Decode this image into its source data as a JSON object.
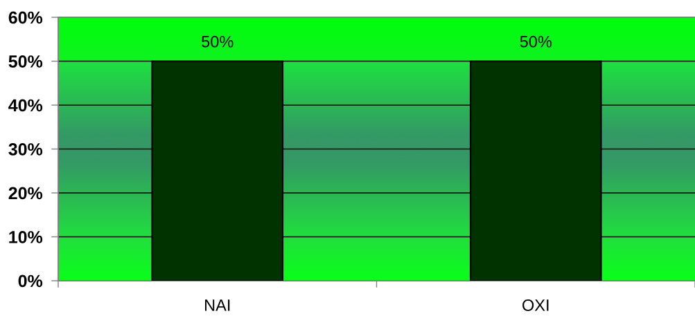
{
  "chart_data": {
    "type": "bar",
    "categories": [
      "ΝΑΙ",
      "ΟΧΙ"
    ],
    "values": [
      50,
      50
    ],
    "color": "#003300",
    "value_labels": [
      "50%",
      "50%"
    ],
    "ylim": [
      0,
      60
    ],
    "yticks": [
      {
        "value": 0,
        "label": "0%"
      },
      {
        "value": 10,
        "label": "10%"
      },
      {
        "value": 20,
        "label": "20%"
      },
      {
        "value": 30,
        "label": "30%"
      },
      {
        "value": 40,
        "label": "40%"
      },
      {
        "value": 50,
        "label": "50%"
      },
      {
        "value": 60,
        "label": "60%"
      }
    ],
    "grid": "y"
  }
}
